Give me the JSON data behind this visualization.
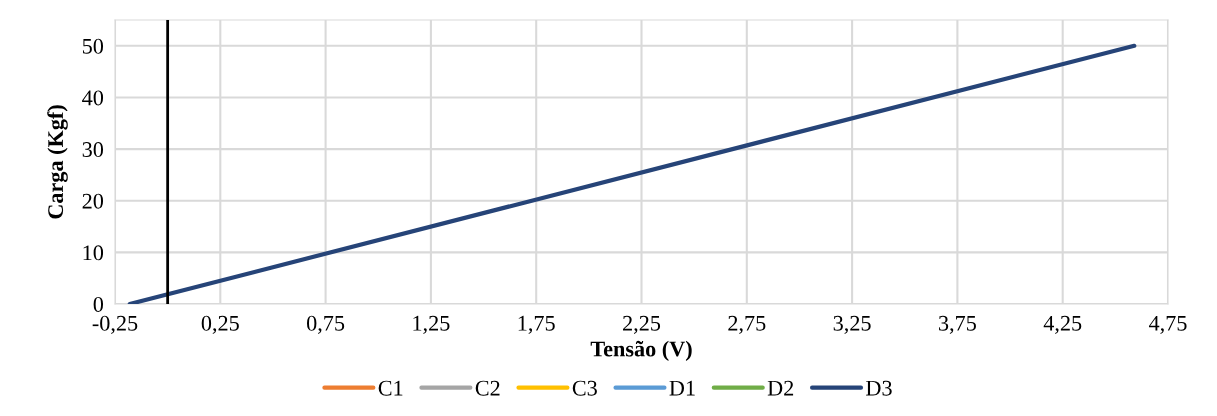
{
  "chart_data": {
    "type": "line",
    "xlabel": "Tensão (V)",
    "ylabel": "Carga (Kgf)",
    "xlim": [
      -0.25,
      4.75
    ],
    "xticks": [
      {
        "value": -0.25,
        "label": "-0,25"
      },
      {
        "value": 0.25,
        "label": "0,25"
      },
      {
        "value": 0.75,
        "label": "0,75"
      },
      {
        "value": 1.25,
        "label": "1,25"
      },
      {
        "value": 1.75,
        "label": "1,75"
      },
      {
        "value": 2.25,
        "label": "2,25"
      },
      {
        "value": 2.75,
        "label": "2,75"
      },
      {
        "value": 3.25,
        "label": "3,25"
      },
      {
        "value": 3.75,
        "label": "3,75"
      },
      {
        "value": 4.25,
        "label": "4,25"
      },
      {
        "value": 4.75,
        "label": "4,75"
      }
    ],
    "ylim": [
      0,
      55
    ],
    "yticks": [
      0,
      10,
      20,
      30,
      40,
      50
    ],
    "grid": true,
    "legend": "bottom",
    "marker": "none",
    "line_style": "solid",
    "ref_lines": [
      {
        "axis": "x",
        "value": 0,
        "color": "#000000"
      }
    ],
    "x": [
      -0.18,
      4.59
    ],
    "series": [
      {
        "name": "C1",
        "color": "#ed7d31",
        "values": [
          null,
          null
        ]
      },
      {
        "name": "C2",
        "color": "#a5a5a5",
        "values": [
          null,
          null
        ]
      },
      {
        "name": "C3",
        "color": "#ffc000",
        "values": [
          null,
          null
        ]
      },
      {
        "name": "D1",
        "color": "#5b9bd5",
        "values": [
          null,
          null
        ]
      },
      {
        "name": "D2",
        "color": "#70ad47",
        "values": [
          null,
          null
        ]
      },
      {
        "name": "D3",
        "color": "#264478",
        "values": [
          0,
          50
        ]
      }
    ]
  }
}
